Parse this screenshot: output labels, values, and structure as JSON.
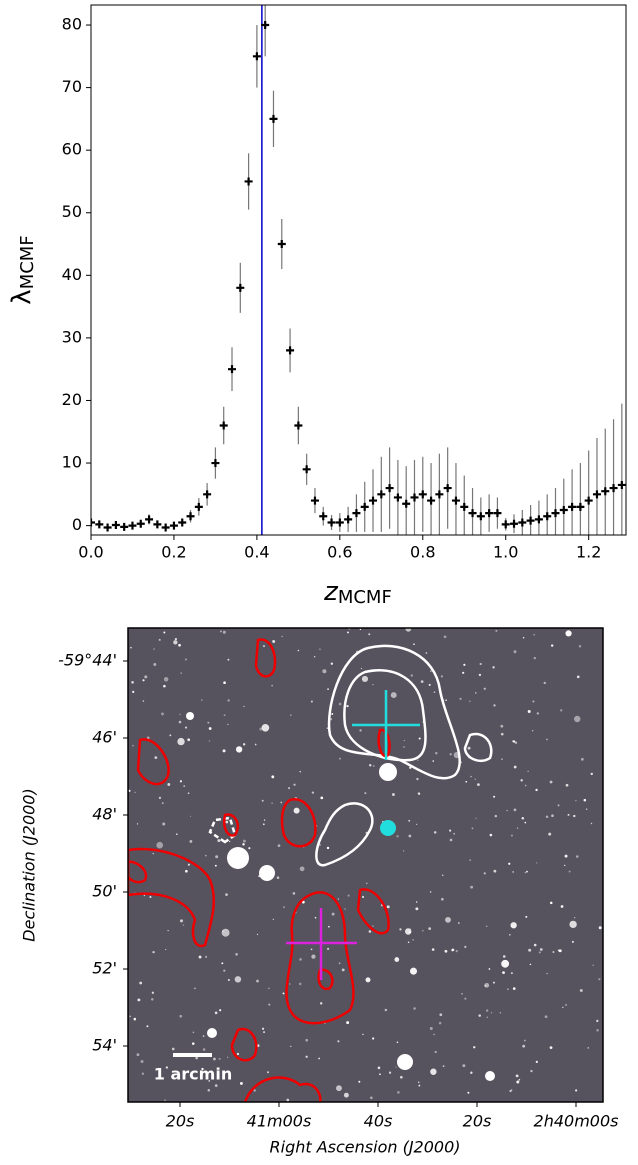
{
  "chart_data": [
    {
      "type": "errorbar",
      "xlabel": {
        "symbol": "z",
        "subscript": "MCMF"
      },
      "ylabel": {
        "symbol": "λ",
        "subscript": "MCMF"
      },
      "x": [
        0,
        0.02,
        0.04,
        0.06,
        0.08,
        0.1,
        0.12,
        0.14,
        0.16,
        0.18,
        0.2,
        0.22,
        0.24,
        0.26,
        0.28,
        0.3,
        0.32,
        0.34,
        0.36,
        0.38,
        0.4,
        0.42,
        0.44,
        0.46,
        0.48,
        0.5,
        0.52,
        0.54,
        0.56,
        0.58,
        0.6,
        0.62,
        0.64,
        0.66,
        0.68,
        0.7,
        0.72,
        0.74,
        0.76,
        0.78,
        0.8,
        0.82,
        0.84,
        0.86,
        0.88,
        0.9,
        0.92,
        0.94,
        0.96,
        0.98,
        1.0,
        1.02,
        1.04,
        1.06,
        1.08,
        1.1,
        1.12,
        1.14,
        1.16,
        1.18,
        1.2,
        1.22,
        1.24,
        1.26,
        1.28
      ],
      "values": [
        0.5,
        0.2,
        -0.3,
        0.1,
        -0.2,
        0,
        0.3,
        1,
        0.2,
        -0.3,
        0,
        0.5,
        1.5,
        3,
        5,
        10,
        16,
        25,
        38,
        55,
        75,
        80,
        65,
        45,
        28,
        16,
        9,
        4,
        1.5,
        0.5,
        0.5,
        1,
        2,
        3,
        4,
        5,
        6,
        4.5,
        3.5,
        4.5,
        5,
        4,
        5,
        6,
        4,
        3,
        2,
        1.5,
        2,
        2,
        0.2,
        0.3,
        0.5,
        0.8,
        1,
        1.5,
        2,
        2.5,
        3,
        3,
        4,
        5,
        5.5,
        6,
        6.5
      ],
      "errors": [
        0.6,
        0.5,
        0.5,
        0.5,
        0.5,
        0.5,
        0.6,
        0.8,
        0.6,
        0.5,
        0.5,
        0.6,
        1,
        1.4,
        1.8,
        2.5,
        3,
        3.5,
        4,
        4.5,
        5,
        5,
        4.5,
        4,
        3.5,
        3,
        2.5,
        2,
        1.5,
        1.2,
        1.5,
        2,
        3,
        4,
        5,
        6,
        6.5,
        6,
        6,
        6,
        6,
        6,
        6.5,
        6.5,
        6,
        5,
        4,
        3,
        3,
        2.5,
        1,
        1.5,
        2,
        2.5,
        3,
        3.5,
        4,
        5,
        6,
        7,
        8,
        9,
        10,
        11,
        13
      ],
      "color": "#000000",
      "error_color": "#777777",
      "vline": 0.412,
      "vline_color": "#0000cc",
      "xlim": [
        0,
        1.29
      ],
      "ylim": [
        -1.5,
        83.2
      ],
      "xticks": [
        {
          "value": 0,
          "label": "0.0"
        },
        0.2,
        0.4,
        0.6,
        0.8,
        {
          "value": 1,
          "label": "1.0"
        },
        1.2
      ],
      "yticks": [
        0,
        10,
        20,
        30,
        40,
        50,
        60,
        70,
        80
      ]
    },
    {
      "type": "image",
      "xlabel": "Right Ascension (J2000)",
      "ylabel": "Declination (J2000)",
      "xtick_labels": [
        "20s",
        "41m00s",
        "40s",
        "20s",
        "2h40m00s"
      ],
      "ytick_labels": [
        "-59°44'",
        "46'",
        "48'",
        "50'",
        "52'",
        "54'"
      ],
      "scale_label": "1 arcmin"
    }
  ]
}
